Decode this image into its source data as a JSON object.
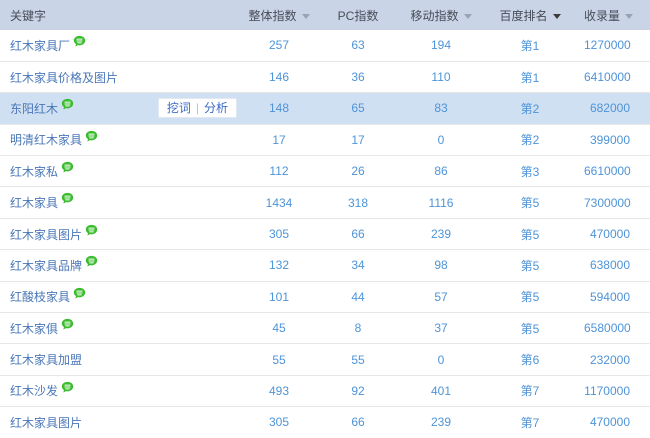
{
  "table": {
    "columns": [
      {
        "key": "keyword",
        "label": "关键字",
        "sortable": false,
        "sort_active": false
      },
      {
        "key": "overall",
        "label": "整体指数",
        "sortable": true,
        "sort_active": false
      },
      {
        "key": "pc",
        "label": "PC指数",
        "sortable": false,
        "sort_active": false
      },
      {
        "key": "mobile",
        "label": "移动指数",
        "sortable": true,
        "sort_active": false
      },
      {
        "key": "rank",
        "label": "百度排名",
        "sortable": true,
        "sort_active": true
      },
      {
        "key": "volume",
        "label": "收录量",
        "sortable": true,
        "sort_active": false
      }
    ],
    "rows": [
      {
        "keyword": "红木家具厂",
        "badge": true,
        "overall": "257",
        "pc": "63",
        "mobile": "194",
        "rank": "第1",
        "volume": "1270000",
        "highlighted": false,
        "actions": false
      },
      {
        "keyword": "红木家具价格及图片",
        "badge": false,
        "overall": "146",
        "pc": "36",
        "mobile": "110",
        "rank": "第1",
        "volume": "6410000",
        "highlighted": false,
        "actions": false
      },
      {
        "keyword": "东阳红木",
        "badge": true,
        "overall": "148",
        "pc": "65",
        "mobile": "83",
        "rank": "第2",
        "volume": "682000",
        "highlighted": true,
        "actions": true
      },
      {
        "keyword": "明清红木家具",
        "badge": true,
        "overall": "17",
        "pc": "17",
        "mobile": "0",
        "rank": "第2",
        "volume": "399000",
        "highlighted": false,
        "actions": false
      },
      {
        "keyword": "红木家私",
        "badge": true,
        "overall": "112",
        "pc": "26",
        "mobile": "86",
        "rank": "第3",
        "volume": "6610000",
        "highlighted": false,
        "actions": false
      },
      {
        "keyword": "红木家具",
        "badge": true,
        "overall": "1434",
        "pc": "318",
        "mobile": "1116",
        "rank": "第5",
        "volume": "7300000",
        "highlighted": false,
        "actions": false
      },
      {
        "keyword": "红木家具图片",
        "badge": true,
        "overall": "305",
        "pc": "66",
        "mobile": "239",
        "rank": "第5",
        "volume": "470000",
        "highlighted": false,
        "actions": false
      },
      {
        "keyword": "红木家具品牌",
        "badge": true,
        "overall": "132",
        "pc": "34",
        "mobile": "98",
        "rank": "第5",
        "volume": "638000",
        "highlighted": false,
        "actions": false
      },
      {
        "keyword": "红酸枝家具",
        "badge": true,
        "overall": "101",
        "pc": "44",
        "mobile": "57",
        "rank": "第5",
        "volume": "594000",
        "highlighted": false,
        "actions": false
      },
      {
        "keyword": "红木家俱",
        "badge": true,
        "overall": "45",
        "pc": "8",
        "mobile": "37",
        "rank": "第5",
        "volume": "6580000",
        "highlighted": false,
        "actions": false
      },
      {
        "keyword": "红木家具加盟",
        "badge": false,
        "overall": "55",
        "pc": "55",
        "mobile": "0",
        "rank": "第6",
        "volume": "232000",
        "highlighted": false,
        "actions": false
      },
      {
        "keyword": "红木沙发",
        "badge": true,
        "overall": "493",
        "pc": "92",
        "mobile": "401",
        "rank": "第7",
        "volume": "1170000",
        "highlighted": false,
        "actions": false
      },
      {
        "keyword": "红木家具图片",
        "badge": false,
        "overall": "305",
        "pc": "66",
        "mobile": "239",
        "rank": "第7",
        "volume": "470000",
        "highlighted": false,
        "actions": false
      }
    ]
  },
  "row_actions": {
    "dig": "挖词",
    "separator": "|",
    "analyze": "分析"
  },
  "icons": {
    "badge": "green-chat-bubble-icon",
    "sort": "sort-down-icon"
  },
  "colors": {
    "header_bg": "#c9d4e6",
    "highlight_row_bg": "#d0e0f3",
    "keyword_link": "#4a77b8",
    "value_link": "#4e94d8",
    "badge_green": "#3bbb2e",
    "action_link": "#3a6bc4",
    "row_border": "#e7e7e7",
    "sort_arrow_inactive": "#98a3b8",
    "sort_arrow_active": "#3b3b3b"
  }
}
